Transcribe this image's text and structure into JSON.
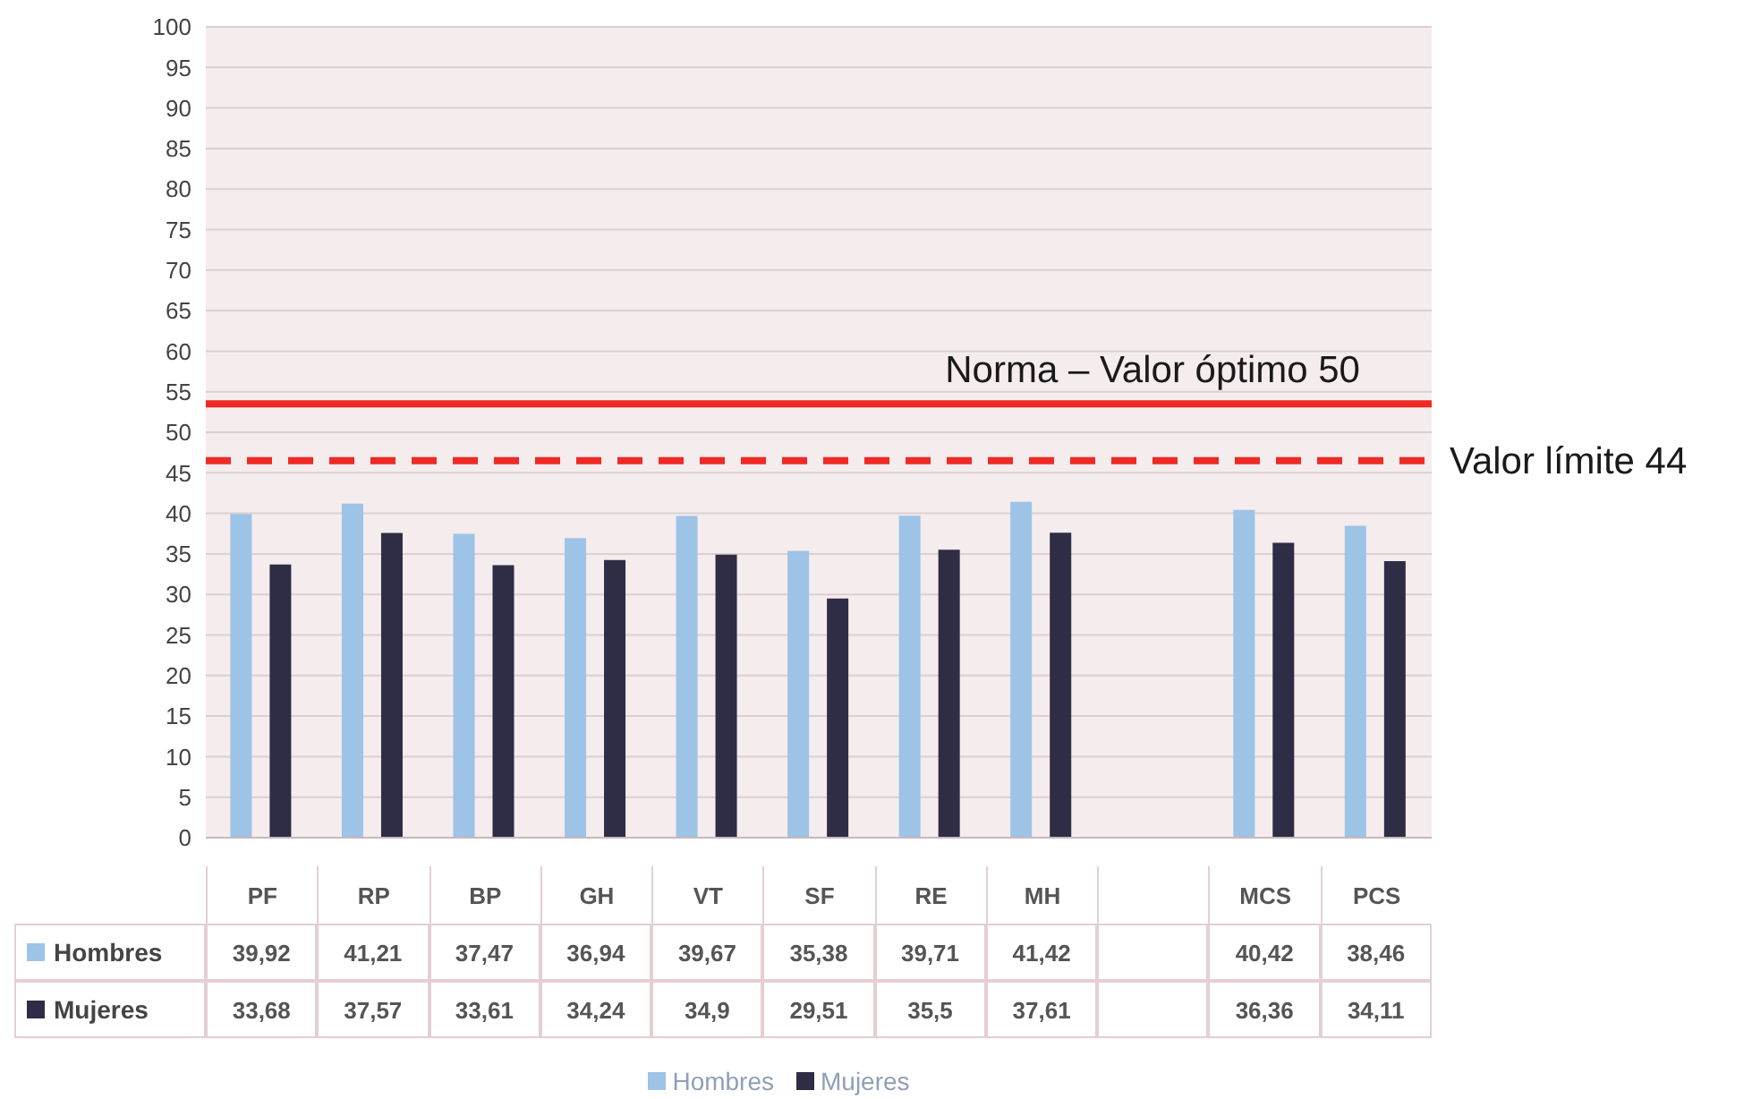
{
  "chart_data": {
    "type": "bar",
    "categories": [
      "PF",
      "RP",
      "BP",
      "GH",
      "VT",
      "SF",
      "RE",
      "MH",
      null,
      "MCS",
      "PCS"
    ],
    "series": [
      {
        "name": "Hombres",
        "color": "#9dc3e6",
        "values": [
          39.92,
          41.21,
          37.47,
          36.94,
          39.67,
          35.38,
          39.71,
          41.42,
          null,
          40.42,
          38.46
        ],
        "value_labels": [
          "39,92",
          "41,21",
          "37,47",
          "36,94",
          "39,67",
          "35,38",
          "39,71",
          "41,42",
          null,
          "40,42",
          "38,46"
        ]
      },
      {
        "name": "Mujeres",
        "color": "#2e2d45",
        "values": [
          33.68,
          37.57,
          33.61,
          34.24,
          34.9,
          29.51,
          35.5,
          37.61,
          null,
          36.36,
          34.11
        ],
        "value_labels": [
          "33,68",
          "37,57",
          "33,61",
          "34,24",
          "34,9",
          "29,51",
          "35,5",
          "37,61",
          null,
          "36,36",
          "34,11"
        ]
      }
    ],
    "ylim": [
      0,
      100
    ],
    "yticks": [
      0,
      5,
      10,
      15,
      20,
      25,
      30,
      35,
      40,
      45,
      50,
      55,
      60,
      65,
      70,
      75,
      80,
      85,
      90,
      95,
      100
    ],
    "grid": "y",
    "legend": "bottom",
    "ref_lines": [
      {
        "axis": "y",
        "value": 53.5,
        "label": "Norma – Valor óptimo 50",
        "color": "#ee2a24",
        "line_style": "solid"
      },
      {
        "axis": "y",
        "value": 46.5,
        "label": "Valor límite 44",
        "color": "#ee2a24",
        "line_style": "dashed"
      }
    ]
  }
}
